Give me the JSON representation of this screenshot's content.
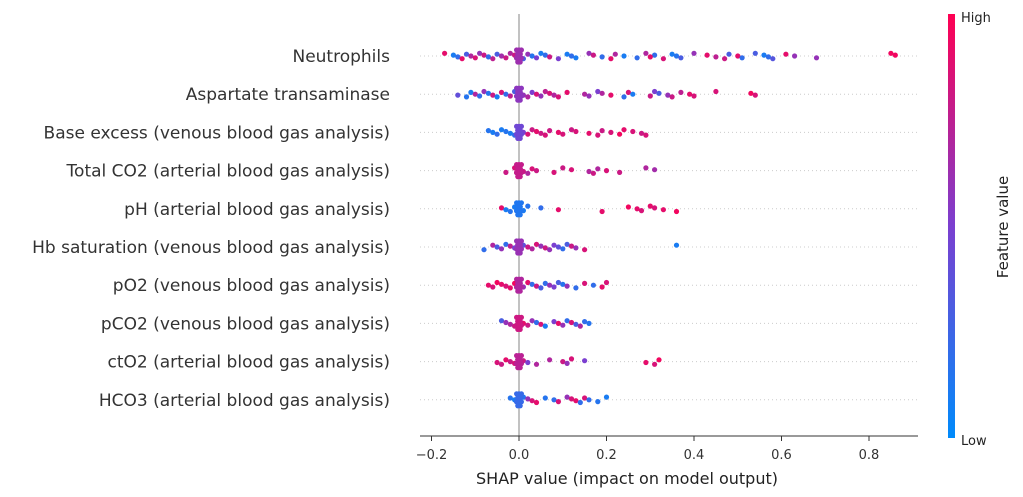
{
  "chart_data": {
    "type": "scatter",
    "subtype": "shap-beeswarm",
    "title": "",
    "xlabel": "SHAP value (impact on model output)",
    "xlim": [
      -0.25,
      0.91
    ],
    "xticks": [
      -0.2,
      0.0,
      0.2,
      0.4,
      0.6,
      0.8
    ],
    "xtick_labels": [
      "−0.2",
      "0.0",
      "0.2",
      "0.4",
      "0.6",
      "0.8"
    ],
    "colorbar": {
      "title": "Feature value",
      "high_label": "High",
      "low_label": "Low",
      "high_color": "#ff0052",
      "mid_color": "#7b3fd0",
      "low_color": "#008bfb"
    },
    "colors": {
      "axis": "#333333",
      "zero_line": "#999999",
      "row_guide": "#cccccc"
    },
    "features": [
      {
        "name": "Neutrophils",
        "points": [
          [
            -0.17,
            0.9
          ],
          [
            -0.15,
            0.1
          ],
          [
            -0.14,
            0.2
          ],
          [
            -0.13,
            0.9
          ],
          [
            -0.12,
            0.3
          ],
          [
            -0.11,
            0.7
          ],
          [
            -0.1,
            0.85
          ],
          [
            -0.09,
            0.6
          ],
          [
            -0.08,
            0.8
          ],
          [
            -0.07,
            0.2
          ],
          [
            -0.06,
            0.75
          ],
          [
            -0.05,
            0.3
          ],
          [
            -0.04,
            0.65
          ],
          [
            -0.03,
            0.8
          ],
          [
            -0.02,
            0.7
          ],
          [
            -0.01,
            0.8
          ],
          [
            0.0,
            0.75
          ],
          [
            0.01,
            0.3
          ],
          [
            0.02,
            0.6
          ],
          [
            0.03,
            0.15
          ],
          [
            0.04,
            0.5
          ],
          [
            0.05,
            0.1
          ],
          [
            0.06,
            0.2
          ],
          [
            0.07,
            0.8
          ],
          [
            0.09,
            0.5
          ],
          [
            0.11,
            0.1
          ],
          [
            0.12,
            0.2
          ],
          [
            0.13,
            0.1
          ],
          [
            0.16,
            0.6
          ],
          [
            0.17,
            0.8
          ],
          [
            0.19,
            0.2
          ],
          [
            0.21,
            0.9
          ],
          [
            0.22,
            0.7
          ],
          [
            0.24,
            0.1
          ],
          [
            0.27,
            0.2
          ],
          [
            0.29,
            0.7
          ],
          [
            0.31,
            0.2
          ],
          [
            0.3,
            0.9
          ],
          [
            0.33,
            0.85
          ],
          [
            0.35,
            0.1
          ],
          [
            0.36,
            0.15
          ],
          [
            0.37,
            0.3
          ],
          [
            0.4,
            0.6
          ],
          [
            0.43,
            0.9
          ],
          [
            0.45,
            0.75
          ],
          [
            0.47,
            0.8
          ],
          [
            0.48,
            0.3
          ],
          [
            0.5,
            0.9
          ],
          [
            0.51,
            0.2
          ],
          [
            0.54,
            0.3
          ],
          [
            0.56,
            0.1
          ],
          [
            0.57,
            0.2
          ],
          [
            0.58,
            0.35
          ],
          [
            0.61,
            0.9
          ],
          [
            0.63,
            0.6
          ],
          [
            0.68,
            0.6
          ],
          [
            0.85,
            0.95
          ],
          [
            0.86,
            0.95
          ]
        ]
      },
      {
        "name": "Aspartate transaminase",
        "points": [
          [
            -0.14,
            0.4
          ],
          [
            -0.12,
            0.15
          ],
          [
            -0.11,
            0.1
          ],
          [
            -0.1,
            0.7
          ],
          [
            -0.09,
            0.2
          ],
          [
            -0.08,
            0.6
          ],
          [
            -0.07,
            0.15
          ],
          [
            -0.06,
            0.8
          ],
          [
            -0.05,
            0.1
          ],
          [
            -0.04,
            0.85
          ],
          [
            -0.03,
            0.2
          ],
          [
            -0.02,
            0.75
          ],
          [
            -0.01,
            0.3
          ],
          [
            0.0,
            0.5
          ],
          [
            0.01,
            0.6
          ],
          [
            0.02,
            0.7
          ],
          [
            0.03,
            0.5
          ],
          [
            0.04,
            0.85
          ],
          [
            0.05,
            0.6
          ],
          [
            0.06,
            0.75
          ],
          [
            0.07,
            0.85
          ],
          [
            0.08,
            0.7
          ],
          [
            0.09,
            0.85
          ],
          [
            0.11,
            0.9
          ],
          [
            0.15,
            0.7
          ],
          [
            0.16,
            0.6
          ],
          [
            0.18,
            0.5
          ],
          [
            0.19,
            0.7
          ],
          [
            0.21,
            0.9
          ],
          [
            0.24,
            0.2
          ],
          [
            0.25,
            0.85
          ],
          [
            0.26,
            0.1
          ],
          [
            0.3,
            0.8
          ],
          [
            0.31,
            0.5
          ],
          [
            0.32,
            0.3
          ],
          [
            0.34,
            0.6
          ],
          [
            0.35,
            0.8
          ],
          [
            0.37,
            0.75
          ],
          [
            0.39,
            0.9
          ],
          [
            0.4,
            0.85
          ],
          [
            0.45,
            0.85
          ],
          [
            0.53,
            0.95
          ],
          [
            0.54,
            0.85
          ]
        ]
      },
      {
        "name": "Base excess (venous blood gas analysis)",
        "points": [
          [
            -0.07,
            0.15
          ],
          [
            -0.06,
            0.1
          ],
          [
            -0.05,
            0.2
          ],
          [
            -0.04,
            0.1
          ],
          [
            -0.03,
            0.15
          ],
          [
            -0.02,
            0.1
          ],
          [
            -0.01,
            0.2
          ],
          [
            0.0,
            0.6
          ],
          [
            0.01,
            0.5
          ],
          [
            0.02,
            0.85
          ],
          [
            0.03,
            0.8
          ],
          [
            0.04,
            0.9
          ],
          [
            0.05,
            0.8
          ],
          [
            0.06,
            0.85
          ],
          [
            0.07,
            0.8
          ],
          [
            0.09,
            0.9
          ],
          [
            0.1,
            0.85
          ],
          [
            0.12,
            0.8
          ],
          [
            0.13,
            0.85
          ],
          [
            0.16,
            0.9
          ],
          [
            0.18,
            0.85
          ],
          [
            0.19,
            0.8
          ],
          [
            0.21,
            0.85
          ],
          [
            0.23,
            0.95
          ],
          [
            0.24,
            0.9
          ],
          [
            0.26,
            0.85
          ],
          [
            0.28,
            0.8
          ],
          [
            0.29,
            0.85
          ]
        ]
      },
      {
        "name": "Total CO2 (arterial blood gas analysis)",
        "points": [
          [
            -0.03,
            0.8
          ],
          [
            -0.01,
            0.85
          ],
          [
            0.0,
            0.75
          ],
          [
            0.01,
            0.8
          ],
          [
            0.02,
            0.7
          ],
          [
            0.03,
            0.85
          ],
          [
            0.04,
            0.8
          ],
          [
            0.08,
            0.85
          ],
          [
            0.1,
            0.8
          ],
          [
            0.12,
            0.85
          ],
          [
            0.16,
            0.7
          ],
          [
            0.17,
            0.8
          ],
          [
            0.18,
            0.7
          ],
          [
            0.2,
            0.85
          ],
          [
            0.23,
            0.8
          ],
          [
            0.29,
            0.7
          ],
          [
            0.31,
            0.65
          ]
        ]
      },
      {
        "name": "pH (arterial blood gas analysis)",
        "points": [
          [
            -0.04,
            0.9
          ],
          [
            -0.03,
            0.1
          ],
          [
            -0.02,
            0.15
          ],
          [
            -0.01,
            0.1
          ],
          [
            0.0,
            0.15
          ],
          [
            0.01,
            0.1
          ],
          [
            0.02,
            0.15
          ],
          [
            0.05,
            0.2
          ],
          [
            0.09,
            0.9
          ],
          [
            0.19,
            0.9
          ],
          [
            0.25,
            0.95
          ],
          [
            0.27,
            0.9
          ],
          [
            0.28,
            0.85
          ],
          [
            0.3,
            0.9
          ],
          [
            0.31,
            0.85
          ],
          [
            0.33,
            0.9
          ],
          [
            0.36,
            0.95
          ]
        ]
      },
      {
        "name": "Hb saturation (venous blood gas analysis)",
        "points": [
          [
            -0.08,
            0.2
          ],
          [
            -0.06,
            0.7
          ],
          [
            -0.05,
            0.3
          ],
          [
            -0.04,
            0.6
          ],
          [
            -0.03,
            0.2
          ],
          [
            -0.02,
            0.75
          ],
          [
            -0.01,
            0.5
          ],
          [
            0.0,
            0.6
          ],
          [
            0.01,
            0.4
          ],
          [
            0.02,
            0.8
          ],
          [
            0.03,
            0.7
          ],
          [
            0.04,
            0.85
          ],
          [
            0.05,
            0.6
          ],
          [
            0.06,
            0.8
          ],
          [
            0.07,
            0.6
          ],
          [
            0.08,
            0.5
          ],
          [
            0.09,
            0.4
          ],
          [
            0.1,
            0.2
          ],
          [
            0.11,
            0.3
          ],
          [
            0.12,
            0.8
          ],
          [
            0.13,
            0.6
          ],
          [
            0.15,
            0.85
          ],
          [
            0.36,
            0.1
          ]
        ]
      },
      {
        "name": "pO2 (venous blood gas analysis)",
        "points": [
          [
            -0.07,
            0.9
          ],
          [
            -0.06,
            0.85
          ],
          [
            -0.05,
            0.95
          ],
          [
            -0.04,
            0.9
          ],
          [
            -0.03,
            0.85
          ],
          [
            -0.02,
            0.9
          ],
          [
            -0.01,
            0.95
          ],
          [
            0.0,
            0.15
          ],
          [
            0.01,
            0.6
          ],
          [
            0.02,
            0.9
          ],
          [
            0.03,
            0.2
          ],
          [
            0.04,
            0.8
          ],
          [
            0.05,
            0.3
          ],
          [
            0.06,
            0.2
          ],
          [
            0.07,
            0.6
          ],
          [
            0.08,
            0.5
          ],
          [
            0.09,
            0.3
          ],
          [
            0.1,
            0.15
          ],
          [
            0.11,
            0.6
          ],
          [
            0.13,
            0.2
          ],
          [
            0.15,
            0.85
          ],
          [
            0.17,
            0.2
          ],
          [
            0.19,
            0.9
          ],
          [
            0.2,
            0.85
          ]
        ]
      },
      {
        "name": "pCO2 (venous blood gas analysis)",
        "points": [
          [
            -0.04,
            0.3
          ],
          [
            -0.03,
            0.6
          ],
          [
            -0.02,
            0.7
          ],
          [
            -0.01,
            0.8
          ],
          [
            0.0,
            0.85
          ],
          [
            0.01,
            0.9
          ],
          [
            0.02,
            0.8
          ],
          [
            0.03,
            0.6
          ],
          [
            0.04,
            0.2
          ],
          [
            0.05,
            0.85
          ],
          [
            0.06,
            0.1
          ],
          [
            0.08,
            0.5
          ],
          [
            0.09,
            0.9
          ],
          [
            0.1,
            0.6
          ],
          [
            0.11,
            0.2
          ],
          [
            0.12,
            0.85
          ],
          [
            0.13,
            0.3
          ],
          [
            0.14,
            0.7
          ],
          [
            0.15,
            0.2
          ],
          [
            0.16,
            0.15
          ]
        ]
      },
      {
        "name": "ctO2 (arterial blood gas analysis)",
        "points": [
          [
            -0.05,
            0.85
          ],
          [
            -0.04,
            0.8
          ],
          [
            -0.03,
            0.9
          ],
          [
            -0.02,
            0.8
          ],
          [
            -0.01,
            0.85
          ],
          [
            0.0,
            0.75
          ],
          [
            0.01,
            0.8
          ],
          [
            0.02,
            0.5
          ],
          [
            0.04,
            0.7
          ],
          [
            0.07,
            0.7
          ],
          [
            0.1,
            0.8
          ],
          [
            0.11,
            0.6
          ],
          [
            0.12,
            0.85
          ],
          [
            0.15,
            0.5
          ],
          [
            0.29,
            0.9
          ],
          [
            0.31,
            0.85
          ],
          [
            0.32,
            0.95
          ]
        ]
      },
      {
        "name": "HCO3 (arterial blood gas analysis)",
        "points": [
          [
            -0.02,
            0.15
          ],
          [
            -0.01,
            0.1
          ],
          [
            0.0,
            0.1
          ],
          [
            0.01,
            0.15
          ],
          [
            0.02,
            0.6
          ],
          [
            0.03,
            0.85
          ],
          [
            0.04,
            0.9
          ],
          [
            0.06,
            0.15
          ],
          [
            0.08,
            0.2
          ],
          [
            0.09,
            0.85
          ],
          [
            0.11,
            0.6
          ],
          [
            0.12,
            0.85
          ],
          [
            0.13,
            0.9
          ],
          [
            0.14,
            0.2
          ],
          [
            0.15,
            0.85
          ],
          [
            0.16,
            0.2
          ],
          [
            0.18,
            0.15
          ],
          [
            0.2,
            0.1
          ]
        ]
      }
    ]
  }
}
